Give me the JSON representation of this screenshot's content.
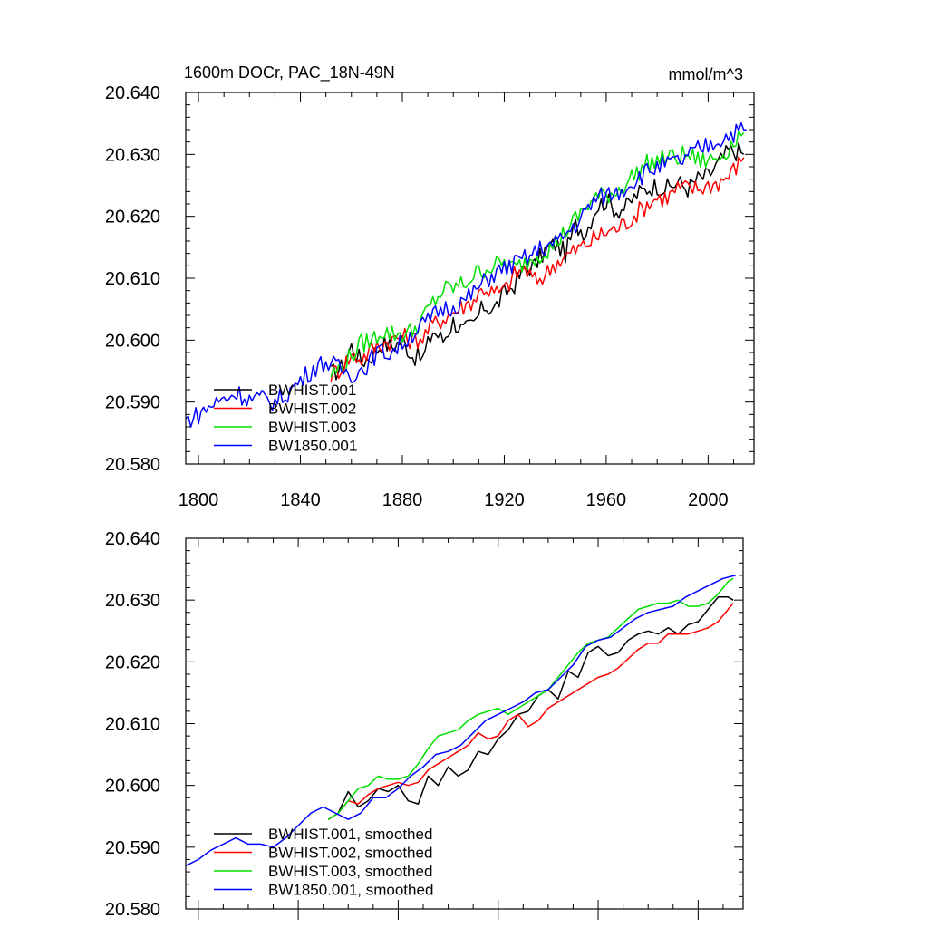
{
  "chart_data": [
    {
      "type": "line",
      "title_left": "1600m DOCr, PAC_18N-49N",
      "title_right": "mmol/m^3",
      "xlim": [
        1795,
        2018
      ],
      "ylim": [
        20.58,
        20.64
      ],
      "xticks": [
        1800,
        1840,
        1880,
        1920,
        1960,
        2000
      ],
      "xtick_labels": [
        "1800",
        "1840",
        "1880",
        "1920",
        "1960",
        "2000"
      ],
      "yticks": [
        20.58,
        20.59,
        20.6,
        20.61,
        20.62,
        20.63,
        20.64
      ],
      "ytick_labels": [
        "20.580",
        "20.590",
        "20.600",
        "20.610",
        "20.620",
        "20.630",
        "20.640"
      ],
      "legend_position": "bottom-left",
      "series": [
        {
          "name": "BWHIST.001",
          "color": "#000000",
          "x": [
            1852,
            1856,
            1860,
            1864,
            1868,
            1872,
            1876,
            1880,
            1884,
            1888,
            1892,
            1896,
            1900,
            1904,
            1908,
            1912,
            1916,
            1920,
            1924,
            1928,
            1932,
            1936,
            1940,
            1944,
            1948,
            1952,
            1956,
            1960,
            1964,
            1968,
            1972,
            1976,
            1980,
            1984,
            1988,
            1992,
            1996,
            2000,
            2004,
            2008,
            2012,
            2014
          ],
          "y": [
            20.5945,
            20.5955,
            20.599,
            20.5965,
            20.5975,
            20.5995,
            20.599,
            20.6,
            20.5975,
            20.597,
            20.6015,
            20.6,
            20.603,
            20.6015,
            20.6025,
            20.6055,
            20.605,
            20.6075,
            20.609,
            20.6115,
            20.612,
            20.6145,
            20.6155,
            20.614,
            20.6185,
            20.6175,
            20.6215,
            20.6225,
            20.621,
            20.6215,
            20.6235,
            20.6245,
            20.625,
            20.6245,
            20.6255,
            20.6245,
            20.626,
            20.6265,
            20.6285,
            20.6305,
            20.6305,
            20.63
          ]
        },
        {
          "name": "BWHIST.002",
          "color": "#ff0000",
          "x": [
            1852,
            1856,
            1860,
            1864,
            1868,
            1872,
            1876,
            1880,
            1884,
            1888,
            1892,
            1896,
            1900,
            1904,
            1908,
            1912,
            1916,
            1920,
            1924,
            1928,
            1932,
            1936,
            1940,
            1944,
            1948,
            1952,
            1956,
            1960,
            1964,
            1968,
            1972,
            1976,
            1980,
            1984,
            1988,
            1992,
            1996,
            2000,
            2004,
            2008,
            2012,
            2014
          ],
          "y": [
            20.5945,
            20.5955,
            20.5975,
            20.597,
            20.5985,
            20.5995,
            20.6,
            20.6005,
            20.6,
            20.6005,
            20.6025,
            20.6035,
            20.6045,
            20.6055,
            20.6065,
            20.6085,
            20.6075,
            20.608,
            20.6105,
            20.6115,
            20.6095,
            20.6105,
            20.6125,
            20.6135,
            20.6145,
            20.6155,
            20.6165,
            20.6175,
            20.618,
            20.619,
            20.6205,
            20.622,
            20.623,
            20.623,
            20.6245,
            20.6245,
            20.6245,
            20.625,
            20.6255,
            20.6265,
            20.6285,
            20.6295
          ]
        },
        {
          "name": "BWHIST.003",
          "color": "#00e000",
          "x": [
            1852,
            1856,
            1860,
            1864,
            1868,
            1872,
            1876,
            1880,
            1884,
            1888,
            1892,
            1896,
            1900,
            1904,
            1908,
            1912,
            1916,
            1920,
            1924,
            1928,
            1932,
            1936,
            1940,
            1944,
            1948,
            1952,
            1956,
            1960,
            1964,
            1968,
            1972,
            1976,
            1980,
            1984,
            1988,
            1992,
            1996,
            2000,
            2004,
            2008,
            2012,
            2014
          ],
          "y": [
            20.5945,
            20.5955,
            20.5975,
            20.5995,
            20.6,
            20.6015,
            20.601,
            20.601,
            20.6015,
            20.6035,
            20.606,
            20.608,
            20.6085,
            20.609,
            20.6105,
            20.6115,
            20.612,
            20.6125,
            20.6115,
            20.6125,
            20.6135,
            20.6145,
            20.6155,
            20.6175,
            20.6195,
            20.6215,
            20.623,
            20.6235,
            20.624,
            20.6255,
            20.627,
            20.6285,
            20.629,
            20.6295,
            20.6295,
            20.63,
            20.629,
            20.629,
            20.6295,
            20.631,
            20.633,
            20.6335
          ]
        },
        {
          "name": "BW1850.001",
          "color": "#0000ff",
          "x": [
            1795,
            1800,
            1805,
            1810,
            1815,
            1820,
            1825,
            1830,
            1835,
            1840,
            1845,
            1850,
            1855,
            1860,
            1865,
            1870,
            1875,
            1880,
            1885,
            1890,
            1895,
            1900,
            1905,
            1910,
            1915,
            1920,
            1925,
            1930,
            1935,
            1940,
            1945,
            1950,
            1955,
            1960,
            1965,
            1970,
            1975,
            1980,
            1985,
            1990,
            1995,
            2000,
            2005,
            2010,
            2015
          ],
          "y": [
            20.587,
            20.588,
            20.5895,
            20.5905,
            20.5915,
            20.5905,
            20.5905,
            20.59,
            20.5915,
            20.5935,
            20.5955,
            20.5965,
            20.5955,
            20.5945,
            20.5955,
            20.598,
            20.598,
            20.5995,
            20.6015,
            20.603,
            20.605,
            20.6055,
            20.6065,
            20.6085,
            20.6105,
            20.6115,
            20.6125,
            20.6135,
            20.615,
            20.6155,
            20.6175,
            20.6195,
            20.6225,
            20.6235,
            20.624,
            20.6255,
            20.627,
            20.628,
            20.6285,
            20.629,
            20.6305,
            20.6315,
            20.6325,
            20.6335,
            20.634
          ]
        }
      ],
      "legend_labels": [
        "BWHIST.001",
        "BWHIST.002",
        "BWHIST.003",
        "BW1850.001"
      ]
    },
    {
      "type": "line",
      "xlim": [
        1795,
        2018
      ],
      "ylim": [
        20.58,
        20.64
      ],
      "xticks": [
        1800,
        1840,
        1880,
        1920,
        1960,
        2000
      ],
      "yticks": [
        20.58,
        20.59,
        20.6,
        20.61,
        20.62,
        20.63,
        20.64
      ],
      "ytick_labels": [
        "20.580",
        "20.590",
        "20.600",
        "20.610",
        "20.620",
        "20.630",
        "20.640"
      ],
      "legend_position": "bottom-left",
      "series": [
        {
          "name": "BWHIST.001, smoothed",
          "color": "#000000",
          "x": [
            1852,
            1856,
            1860,
            1864,
            1868,
            1872,
            1876,
            1880,
            1884,
            1888,
            1892,
            1896,
            1900,
            1904,
            1908,
            1912,
            1916,
            1920,
            1924,
            1928,
            1932,
            1936,
            1940,
            1944,
            1948,
            1952,
            1956,
            1960,
            1964,
            1968,
            1972,
            1976,
            1980,
            1984,
            1988,
            1992,
            1996,
            2000,
            2004,
            2008,
            2012,
            2014
          ],
          "y": [
            20.5945,
            20.5955,
            20.599,
            20.5965,
            20.5975,
            20.5995,
            20.599,
            20.6,
            20.5975,
            20.597,
            20.6015,
            20.6,
            20.603,
            20.6015,
            20.6025,
            20.6055,
            20.605,
            20.6075,
            20.609,
            20.6115,
            20.612,
            20.6145,
            20.6155,
            20.614,
            20.6185,
            20.6175,
            20.6215,
            20.6225,
            20.621,
            20.6215,
            20.6235,
            20.6245,
            20.625,
            20.6245,
            20.6255,
            20.6245,
            20.626,
            20.6265,
            20.6285,
            20.6305,
            20.6305,
            20.63
          ]
        },
        {
          "name": "BWHIST.002, smoothed",
          "color": "#ff0000",
          "x": [
            1852,
            1856,
            1860,
            1864,
            1868,
            1872,
            1876,
            1880,
            1884,
            1888,
            1892,
            1896,
            1900,
            1904,
            1908,
            1912,
            1916,
            1920,
            1924,
            1928,
            1932,
            1936,
            1940,
            1944,
            1948,
            1952,
            1956,
            1960,
            1964,
            1968,
            1972,
            1976,
            1980,
            1984,
            1988,
            1992,
            1996,
            2000,
            2004,
            2008,
            2012,
            2014
          ],
          "y": [
            20.5945,
            20.5955,
            20.5975,
            20.597,
            20.5985,
            20.5995,
            20.6,
            20.6005,
            20.6,
            20.6005,
            20.6025,
            20.6035,
            20.6045,
            20.6055,
            20.6065,
            20.6085,
            20.6075,
            20.608,
            20.6105,
            20.6115,
            20.6095,
            20.6105,
            20.6125,
            20.6135,
            20.6145,
            20.6155,
            20.6165,
            20.6175,
            20.618,
            20.619,
            20.6205,
            20.622,
            20.623,
            20.623,
            20.6245,
            20.6245,
            20.6245,
            20.625,
            20.6255,
            20.6265,
            20.6285,
            20.6295
          ]
        },
        {
          "name": "BWHIST.003, smoothed",
          "color": "#00e000",
          "x": [
            1852,
            1856,
            1860,
            1864,
            1868,
            1872,
            1876,
            1880,
            1884,
            1888,
            1892,
            1896,
            1900,
            1904,
            1908,
            1912,
            1916,
            1920,
            1924,
            1928,
            1932,
            1936,
            1940,
            1944,
            1948,
            1952,
            1956,
            1960,
            1964,
            1968,
            1972,
            1976,
            1980,
            1984,
            1988,
            1992,
            1996,
            2000,
            2004,
            2008,
            2012,
            2014
          ],
          "y": [
            20.5945,
            20.5955,
            20.5975,
            20.5995,
            20.6,
            20.6015,
            20.601,
            20.601,
            20.6015,
            20.6035,
            20.606,
            20.608,
            20.6085,
            20.609,
            20.6105,
            20.6115,
            20.612,
            20.6125,
            20.6115,
            20.6125,
            20.6135,
            20.6145,
            20.6155,
            20.6175,
            20.6195,
            20.6215,
            20.623,
            20.6235,
            20.624,
            20.6255,
            20.627,
            20.6285,
            20.629,
            20.6295,
            20.6295,
            20.63,
            20.629,
            20.629,
            20.6295,
            20.631,
            20.633,
            20.6335
          ]
        },
        {
          "name": "BW1850.001, smoothed",
          "color": "#0000ff",
          "x": [
            1795,
            1800,
            1805,
            1810,
            1815,
            1820,
            1825,
            1830,
            1835,
            1840,
            1845,
            1850,
            1855,
            1860,
            1865,
            1870,
            1875,
            1880,
            1885,
            1890,
            1895,
            1900,
            1905,
            1910,
            1915,
            1920,
            1925,
            1930,
            1935,
            1940,
            1945,
            1950,
            1955,
            1960,
            1965,
            1970,
            1975,
            1980,
            1985,
            1990,
            1995,
            2000,
            2005,
            2010,
            2015
          ],
          "y": [
            20.587,
            20.588,
            20.5895,
            20.5905,
            20.5915,
            20.5905,
            20.5905,
            20.59,
            20.5915,
            20.5935,
            20.5955,
            20.5965,
            20.5955,
            20.5945,
            20.5955,
            20.598,
            20.598,
            20.5995,
            20.6015,
            20.603,
            20.605,
            20.6055,
            20.6065,
            20.6085,
            20.6105,
            20.6115,
            20.6125,
            20.6135,
            20.615,
            20.6155,
            20.6175,
            20.6195,
            20.6225,
            20.6235,
            20.624,
            20.6255,
            20.627,
            20.628,
            20.6285,
            20.629,
            20.6305,
            20.6315,
            20.6325,
            20.6335,
            20.634
          ]
        }
      ],
      "legend_labels": [
        "BWHIST.001, smoothed",
        "BWHIST.002, smoothed",
        "BWHIST.003, smoothed",
        "BW1850.001, smoothed"
      ]
    }
  ]
}
